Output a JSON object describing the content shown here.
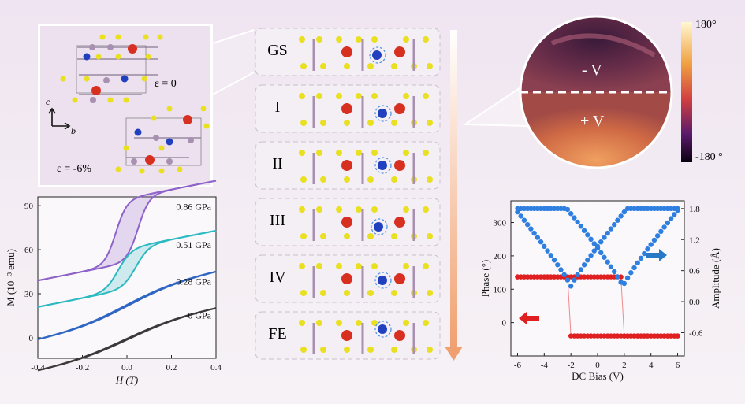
{
  "structure_inset": {
    "strain_zero": "ε = 0",
    "strain_neg": "ε = -6%",
    "axis_c": "c",
    "axis_b": "b"
  },
  "states": [
    "GS",
    "I",
    "II",
    "III",
    "IV",
    "FE"
  ],
  "pfm_image": {
    "label_neg": "- V",
    "label_pos": "+ V",
    "colorbar_max": "180°",
    "colorbar_min": "-180 °"
  },
  "colors": {
    "accent_purple": "#8e63c9",
    "accent_cyan": "#2cb9c2",
    "accent_blue": "#2f66c4",
    "accent_black": "#3a3a3a",
    "phase_red": "#e02020",
    "amplitude_blue": "#2f7fe0",
    "arrow_orange": "#f0a070"
  },
  "chart_data": [
    {
      "type": "line",
      "xlabel": "H (T)",
      "ylabel": "M (10⁻³ emu)",
      "xlim": [
        -0.4,
        0.4
      ],
      "ylim": [
        -14,
        96
      ],
      "xticks": [
        "-0.4",
        "-0.2",
        "0.0",
        "0.2",
        "0.4"
      ],
      "yticks": [
        "0",
        "30",
        "60",
        "90"
      ],
      "series": [
        {
          "name": "0.86 GPa",
          "color": "#8e63c9",
          "offset": 73,
          "amp": 22,
          "width": 0.05,
          "coercive": 0.05
        },
        {
          "name": "0.51 GPa",
          "color": "#2cb9c2",
          "offset": 47,
          "amp": 14,
          "width": 0.06,
          "coercive": 0.04
        },
        {
          "name": "0.28 GPa",
          "color": "#2f66c4",
          "offset": 22,
          "amp": 12,
          "width": 0.25,
          "coercive": 0.01
        },
        {
          "name": "0 GPa",
          "color": "#3a3a3a",
          "offset": -1,
          "amp": 10,
          "width": 0.25,
          "coercive": 0.01
        }
      ]
    },
    {
      "type": "scatter",
      "xlabel": "DC Bias (V)",
      "ylabel": "Phase (°)",
      "ylabel_right": "Amplitude (Å)",
      "xlim": [
        -6.5,
        6.5
      ],
      "ylim": [
        -100,
        365
      ],
      "ylim_right": [
        -1.05,
        1.95
      ],
      "xticks": [
        "-6",
        "-4",
        "-2",
        "0",
        "2",
        "4",
        "6"
      ],
      "yticks": [
        "0",
        "100",
        "200",
        "300"
      ],
      "yticks_right": [
        "-0.6",
        "0.0",
        "0.6",
        "1.2",
        "1.8"
      ],
      "phase": {
        "high": 137,
        "low": -40,
        "switch_neg": -2.1,
        "switch_pos": 1.9
      },
      "amplitude": {
        "max": 1.8,
        "min": 0.3,
        "center_min": 0.9
      }
    }
  ]
}
